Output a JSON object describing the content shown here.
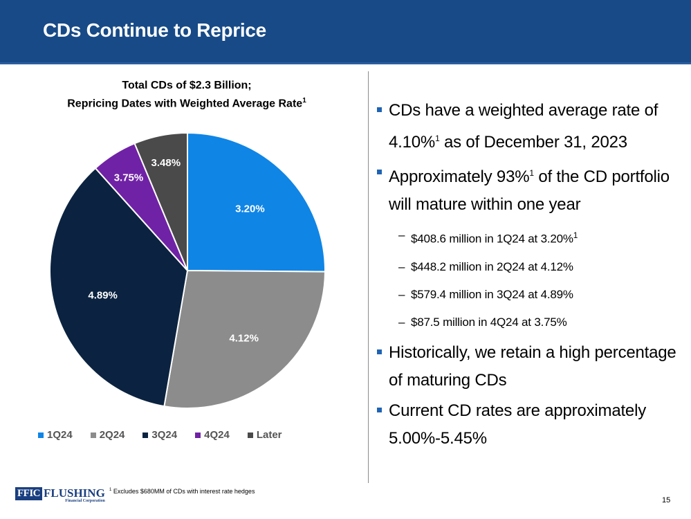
{
  "header": {
    "title": "CDs Continue to Reprice"
  },
  "chart_title": {
    "line1": "Total CDs of $2.3 Billion;",
    "line2": "Repricing Dates with Weighted Average Rate",
    "sup": "1"
  },
  "chart_data": {
    "type": "pie",
    "title": "Total CDs of $2.3 Billion; Repricing Dates with Weighted Average Rate",
    "categories": [
      "1Q24",
      "2Q24",
      "3Q24",
      "4Q24",
      "Later"
    ],
    "values": [
      408.6,
      448.2,
      579.4,
      87.5,
      102
    ],
    "labels": [
      "3.20%",
      "4.12%",
      "4.89%",
      "3.75%",
      "3.48%"
    ],
    "colors": [
      "#0f85e6",
      "#8c8c8c",
      "#0b2340",
      "#7022a6",
      "#4a4a4a"
    ],
    "legend_position": "bottom"
  },
  "bullets": {
    "b1": {
      "text1": "CDs have a weighted average rate of",
      "text2": "4.10%",
      "sup": "1",
      "text3": " as of December 31, 2023"
    },
    "b2": {
      "text1": "Approximately 93%",
      "sup": "1",
      "text2": " of the CD portfolio",
      "text3": "will mature within one year"
    },
    "subs": [
      {
        "text": "$408.6 million in 1Q24 at 3.20%",
        "sup": "1"
      },
      {
        "text": "$448.2 million in 2Q24 at 4.12%",
        "sup": ""
      },
      {
        "text": "$579.4 million in 3Q24 at 4.89%",
        "sup": ""
      },
      {
        "text": "$87.5 million in 4Q24 at 3.75%",
        "sup": ""
      }
    ],
    "b3": {
      "text1": "Historically, we retain a high percentage",
      "text2": "of maturing CDs"
    },
    "b4": {
      "text1": "Current CD rates are approximately",
      "text2": "5.00%-5.45%"
    },
    "dash": "–"
  },
  "footer": {
    "logo_ffic": "FFIC",
    "logo_name": "FLUSHING",
    "logo_sub": "Financial Corporation",
    "footnote_mark": "1",
    "footnote": " Excludes $680MM of CDs with interest rate hedges",
    "page_number": "15"
  }
}
